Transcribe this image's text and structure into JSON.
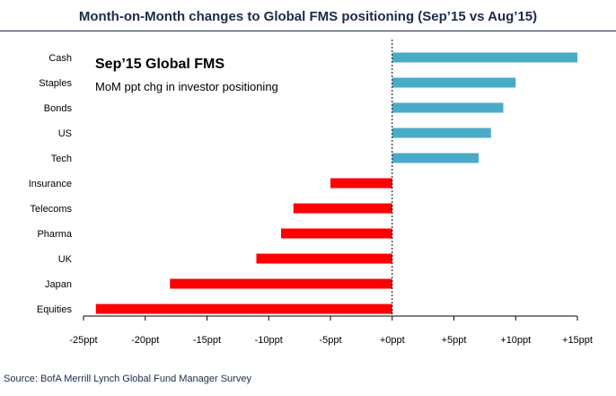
{
  "header": {
    "title": "Month-on-Month changes to Global FMS positioning (Sep’15 vs Aug’15)"
  },
  "footer": {
    "source": "Source: BofA Merrill Lynch Global Fund Manager Survey"
  },
  "colors": {
    "positive": "#4aabc8",
    "negative": "#ff0000",
    "axis": "#000000",
    "title": "#1b2a4a"
  },
  "chart_data": {
    "type": "bar",
    "orientation": "horizontal",
    "title": "Sep’15 Global FMS",
    "subtitle": "MoM ppt chg in investor positioning",
    "categories": [
      "Cash",
      "Staples",
      "Bonds",
      "US",
      "Tech",
      "Insurance",
      "Telecoms",
      "Pharma",
      "UK",
      "Japan",
      "Equities"
    ],
    "values": [
      15,
      10,
      9,
      8,
      7,
      -5,
      -8,
      -9,
      -11,
      -18,
      -24
    ],
    "xlim": [
      -25,
      15
    ],
    "xticks": [
      -25,
      -20,
      -15,
      -10,
      -5,
      0,
      5,
      10,
      15
    ],
    "xtick_labels": [
      "-25ppt",
      "-20ppt",
      "-15ppt",
      "-10ppt",
      "-5ppt",
      "+0ppt",
      "+5ppt",
      "+10ppt",
      "+15ppt"
    ],
    "grid": false,
    "zero_line_style": "dashed"
  }
}
